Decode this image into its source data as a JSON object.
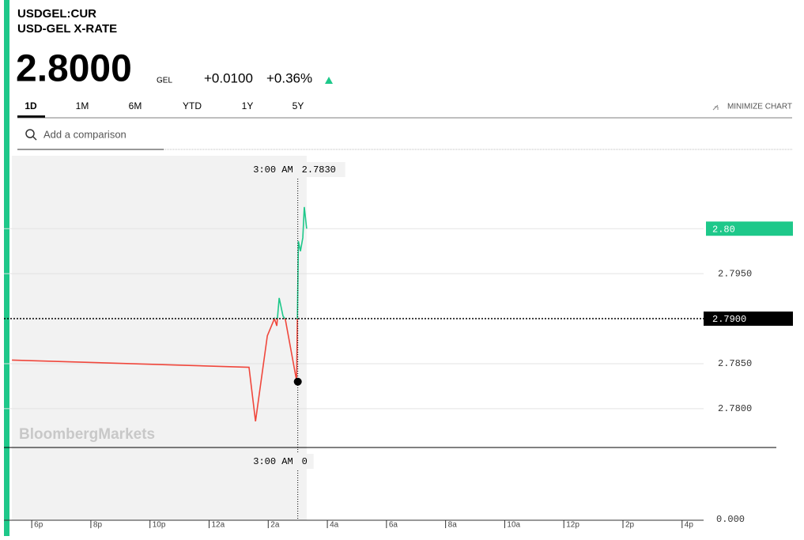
{
  "header": {
    "ticker": "USDGEL:CUR",
    "name": "USD-GEL X-RATE",
    "price": "2.8000",
    "currency": "GEL",
    "change": "+0.0100",
    "change_pct": "+0.36%"
  },
  "tabs": [
    "1D",
    "1M",
    "6M",
    "YTD",
    "1Y",
    "5Y"
  ],
  "minimize": "MINIMIZE CHART",
  "search_placeholder": "Add a comparison",
  "watermark": "BloombergMarkets",
  "chart_data": {
    "type": "line",
    "x": [
      -0.67,
      7.35,
      7.57,
      7.97,
      8.21,
      8.29,
      8.37,
      8.5,
      8.58,
      8.96,
      9.02,
      9.09,
      9.17,
      9.22,
      9.3
    ],
    "values": [
      2.7854,
      2.7846,
      2.7786,
      2.7881,
      2.79,
      2.7892,
      2.7923,
      2.7903,
      2.7899,
      2.7831,
      2.7986,
      2.7975,
      2.799,
      2.8024,
      2.8
    ],
    "up_color": "#1ec88a",
    "down_color": "#f0473c",
    "xlim": [
      -0.94,
      25.75
    ],
    "ylim": [
      2.7756,
      2.8081
    ],
    "yticks": [
      {
        "value": 2.78,
        "label": "2.7800"
      },
      {
        "value": 2.785,
        "label": "2.7850"
      },
      {
        "value": 2.795,
        "label": "2.7950"
      }
    ],
    "xticks": [
      {
        "value": 0,
        "label": "6p"
      },
      {
        "value": 2,
        "label": "8p"
      },
      {
        "value": 4,
        "label": "10p"
      },
      {
        "value": 6,
        "label": "12a"
      },
      {
        "value": 8,
        "label": "2a"
      },
      {
        "value": 10,
        "label": "4a"
      },
      {
        "value": 12,
        "label": "6a"
      },
      {
        "value": 14,
        "label": "8a"
      },
      {
        "value": 16,
        "label": "10a"
      },
      {
        "value": 18,
        "label": "12p"
      },
      {
        "value": 20,
        "label": "2p"
      },
      {
        "value": 22,
        "label": "4p"
      }
    ],
    "last_value": {
      "value": 2.8,
      "label": "2.80"
    },
    "reference": {
      "value": 2.79,
      "label": "2.7900"
    },
    "crosshair": {
      "x": {
        "value": 9,
        "label": "3:00 AM"
      },
      "y": {
        "value": 2.783,
        "label": "2.7830"
      },
      "volume": 0
    },
    "volume_ticks": [
      {
        "value": 0,
        "label": "0.000"
      }
    ]
  }
}
